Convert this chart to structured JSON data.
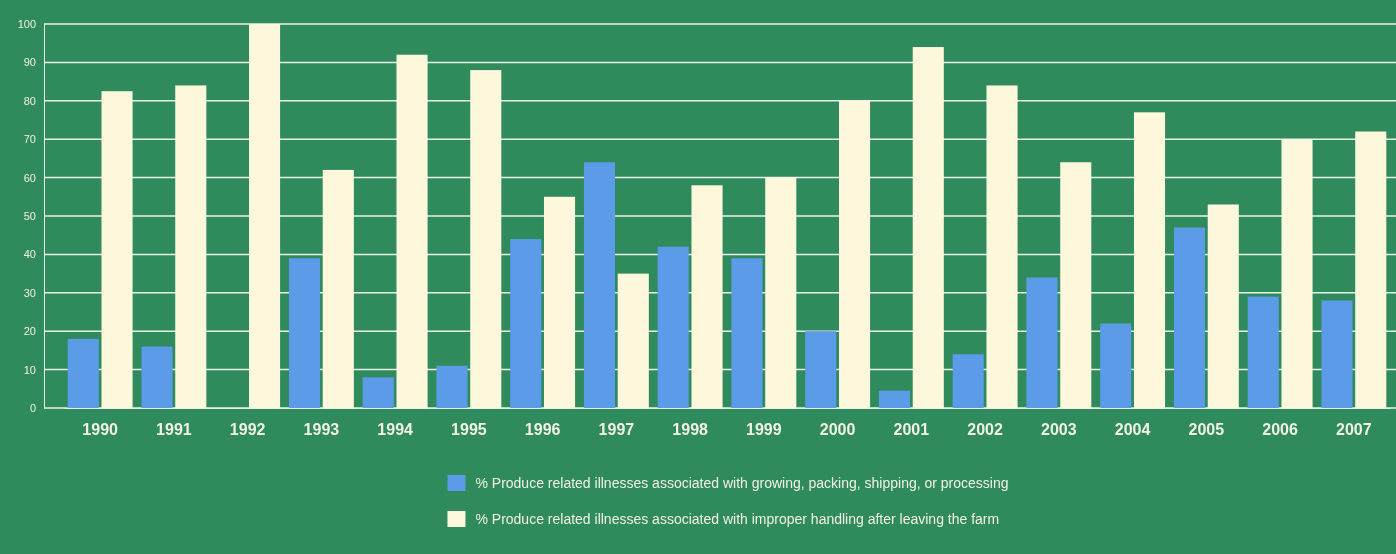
{
  "chart_data": {
    "type": "bar",
    "categories": [
      "1990",
      "1991",
      "1992",
      "1993",
      "1994",
      "1995",
      "1996",
      "1997",
      "1998",
      "1999",
      "2000",
      "2001",
      "2002",
      "2003",
      "2004",
      "2005",
      "2006",
      "2007"
    ],
    "series": [
      {
        "name": "% Produce related illnesses associated with growing, packing, shipping, or processing",
        "color": "#5b9be8",
        "values": [
          18,
          16,
          0,
          39,
          8,
          11,
          44,
          64,
          42,
          39,
          20,
          4.5,
          14,
          34,
          22,
          47,
          29,
          28
        ]
      },
      {
        "name": "% Produce related illnesses associated with improper handling after leaving the farm",
        "color": "#fdf8dc",
        "values": [
          82.5,
          84,
          100,
          62,
          92,
          88,
          55,
          35,
          58,
          60,
          80,
          94,
          84,
          64,
          77,
          53,
          70,
          72
        ]
      }
    ],
    "ylim": [
      0,
      100
    ],
    "yticks": [
      0,
      10,
      20,
      30,
      40,
      50,
      60,
      70,
      80,
      90,
      100
    ],
    "grid": "y",
    "legend": "bottom"
  }
}
